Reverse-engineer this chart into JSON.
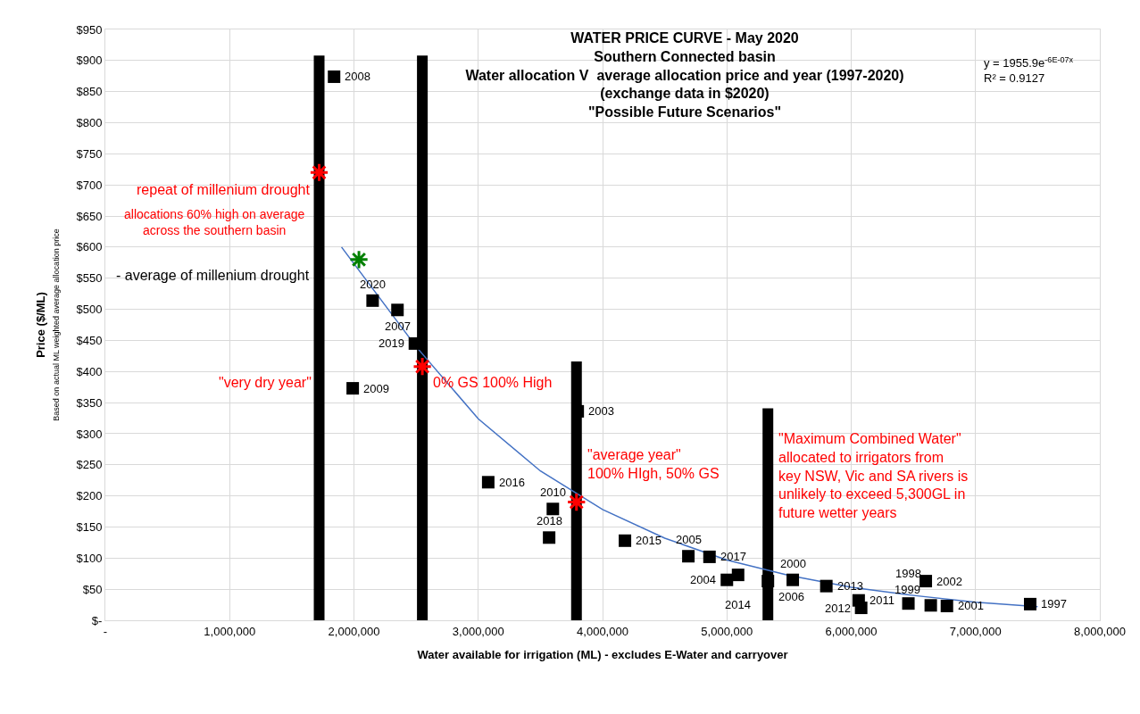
{
  "chart_data": {
    "type": "scatter",
    "title": "WATER PRICE CURVE - May 2020\nSouthern Connected basin\nWater allocation V  average allocation price and year (1997-2020)\n(exchange data in $2020)\n\"Possible Future Scenarios\"",
    "xlabel": "Water available for irrigation (ML) - excludes E-Water and carryover",
    "ylabel": "Price ($/ML)\nBased on actual ML weighted average allocation price",
    "xlim": [
      0,
      8000000
    ],
    "ylim": [
      0,
      950
    ],
    "xticks": [
      {
        "value": 0,
        "label": "-"
      },
      {
        "value": 1000000,
        "label": "1,000,000"
      },
      {
        "value": 2000000,
        "label": "2,000,000"
      },
      {
        "value": 3000000,
        "label": "3,000,000"
      },
      {
        "value": 4000000,
        "label": "4,000,000"
      },
      {
        "value": 5000000,
        "label": "5,000,000"
      },
      {
        "value": 6000000,
        "label": "6,000,000"
      },
      {
        "value": 7000000,
        "label": "7,000,000"
      },
      {
        "value": 8000000,
        "label": "8,000,000"
      }
    ],
    "yticks": [
      {
        "value": 0,
        "label": "$-"
      },
      {
        "value": 50,
        "label": "$50"
      },
      {
        "value": 100,
        "label": "$100"
      },
      {
        "value": 150,
        "label": "$150"
      },
      {
        "value": 200,
        "label": "$200"
      },
      {
        "value": 250,
        "label": "$250"
      },
      {
        "value": 300,
        "label": "$300"
      },
      {
        "value": 350,
        "label": "$350"
      },
      {
        "value": 400,
        "label": "$400"
      },
      {
        "value": 450,
        "label": "$450"
      },
      {
        "value": 500,
        "label": "$500"
      },
      {
        "value": 550,
        "label": "$550"
      },
      {
        "value": 600,
        "label": "$600"
      },
      {
        "value": 650,
        "label": "$650"
      },
      {
        "value": 700,
        "label": "$700"
      },
      {
        "value": 750,
        "label": "$750"
      },
      {
        "value": 800,
        "label": "$800"
      },
      {
        "value": 850,
        "label": "$850"
      },
      {
        "value": 900,
        "label": "$900"
      },
      {
        "value": 950,
        "label": "$950"
      }
    ],
    "grid": true,
    "series": [
      {
        "type": "line",
        "color": "#000000",
        "x": [
          1720000,
          1720000
        ],
        "values": [
          0,
          908
        ]
      },
      {
        "type": "line",
        "color": "#000000",
        "x": [
          2550000,
          2550000
        ],
        "values": [
          0,
          908
        ]
      },
      {
        "type": "line",
        "color": "#000000",
        "x": [
          3790000,
          3790000
        ],
        "values": [
          0,
          416
        ]
      },
      {
        "type": "line",
        "color": "#000000",
        "x": [
          5330000,
          5330000
        ],
        "values": [
          0,
          341
        ]
      },
      {
        "type": "line",
        "color": "#4472c4",
        "marker": "none",
        "x": [
          1900000,
          2200000,
          2500000,
          3000000,
          3500000,
          4000000,
          4500000,
          5000000,
          5500000,
          6000000,
          6500000,
          7000000,
          7500000
        ],
        "values": [
          600,
          520,
          440,
          324,
          240,
          178,
          132,
          97,
          72,
          53,
          40,
          29,
          22
        ]
      },
      {
        "color": "#000000",
        "marker": "square",
        "x": [
          1840000,
          2150000,
          2350000,
          2490000,
          1990000,
          3800000,
          3080000,
          3600000,
          3570000,
          4180000,
          4690000,
          4860000,
          5000000,
          5090000,
          5330000,
          5530000,
          5800000,
          6060000,
          6080000,
          6460000,
          6600000,
          6640000,
          6770000,
          7440000
        ],
        "values": [
          874,
          514,
          499,
          445,
          373,
          336,
          222,
          179,
          133,
          128,
          103,
          102,
          65,
          73,
          63,
          65,
          55,
          32,
          20,
          27,
          63,
          24,
          23,
          26
        ]
      },
      {
        "color": "#ff0000",
        "marker": "cross",
        "x": [
          1720000,
          2550000,
          3790000
        ],
        "values": [
          720,
          408,
          190
        ]
      },
      {
        "color": "#008000",
        "marker": "cross",
        "x": [
          2040000
        ],
        "values": [
          580
        ]
      }
    ],
    "annotations": [
      "repeat of millenium drought",
      "allocations 60% high on average\nacross the southern basin",
      "- average of millenium drought",
      "\"very dry year\"",
      "0% GS 100% High",
      "\"average year\"\n100% HIgh, 50% GS",
      "\"Maximum Combined Water\"\nallocated to irrigators from\nkey NSW, Vic and SA rivers is\nunlikely to exceed 5,300GL in\nfuture wetter years",
      "y = 1955.9e$^{-6E-07x}$\nR² = 0.9127",
      {
        "text": "2008",
        "x": 1840000,
        "y": 874
      },
      {
        "text": "2020",
        "x": 2150000,
        "y": 514
      },
      {
        "text": "2007",
        "x": 2350000,
        "y": 499
      },
      {
        "text": "2019",
        "x": 2490000,
        "y": 445
      },
      {
        "text": "2009",
        "x": 1990000,
        "y": 373
      },
      {
        "text": "2003",
        "x": 3800000,
        "y": 336
      },
      {
        "text": "2016",
        "x": 3080000,
        "y": 222
      },
      {
        "text": "2010",
        "x": 3600000,
        "y": 179
      },
      {
        "text": "2018",
        "x": 3570000,
        "y": 133
      },
      {
        "text": "2015",
        "x": 4180000,
        "y": 128
      },
      {
        "text": "2005",
        "x": 4690000,
        "y": 103
      },
      {
        "text": "2017",
        "x": 4860000,
        "y": 102
      },
      {
        "text": "2004",
        "x": 5000000,
        "y": 65
      },
      {
        "text": "2014",
        "x": 5090000,
        "y": 73
      },
      {
        "text": "2006",
        "x": 5330000,
        "y": 63
      },
      {
        "text": "2000",
        "x": 5530000,
        "y": 65
      },
      {
        "text": "2013",
        "x": 5800000,
        "y": 55
      },
      {
        "text": "2011",
        "x": 6060000,
        "y": 32
      },
      {
        "text": "2012",
        "x": 6080000,
        "y": 20
      },
      {
        "text": "1998",
        "x": 6460000,
        "y": 27
      },
      {
        "text": "2002",
        "x": 6600000,
        "y": 63
      },
      {
        "text": "1999",
        "x": 6640000,
        "y": 24
      },
      {
        "text": "2001",
        "x": 6770000,
        "y": 23
      },
      {
        "text": "1997",
        "x": 7440000,
        "y": 26
      }
    ]
  }
}
